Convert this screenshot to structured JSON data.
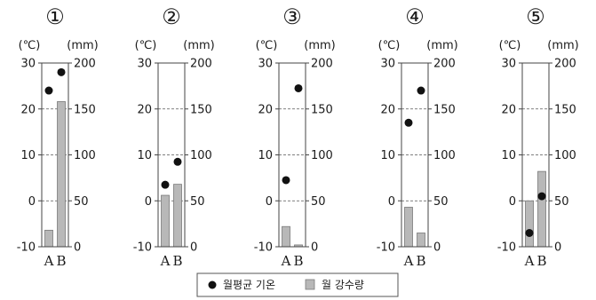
{
  "chart_data": [
    {
      "type": "bar",
      "title": "①",
      "temp_unit": "(℃)",
      "precip_unit": "(mm)",
      "categories": [
        "A",
        "B"
      ],
      "temperature_ylim": [
        -10,
        30
      ],
      "precipitation_ylim": [
        0,
        200
      ],
      "temp_ticks": [
        -10,
        0,
        10,
        20,
        30
      ],
      "precip_ticks": [
        0,
        50,
        100,
        150,
        200
      ],
      "series": [
        {
          "name": "월평균 기온",
          "kind": "dot",
          "values": [
            24,
            28
          ]
        },
        {
          "name": "월 강수량",
          "kind": "bar",
          "values": [
            18,
            158
          ]
        }
      ]
    },
    {
      "type": "bar",
      "title": "②",
      "temp_unit": "(℃)",
      "precip_unit": "(mm)",
      "categories": [
        "A",
        "B"
      ],
      "temperature_ylim": [
        -10,
        30
      ],
      "precipitation_ylim": [
        0,
        200
      ],
      "temp_ticks": [
        -10,
        0,
        10,
        20,
        30
      ],
      "precip_ticks": [
        0,
        50,
        100,
        150,
        200
      ],
      "series": [
        {
          "name": "월평균 기온",
          "kind": "dot",
          "values": [
            3.5,
            8.5
          ]
        },
        {
          "name": "월 강수량",
          "kind": "bar",
          "values": [
            56,
            68
          ]
        }
      ]
    },
    {
      "type": "bar",
      "title": "③",
      "temp_unit": "(℃)",
      "precip_unit": "(mm)",
      "categories": [
        "A",
        "B"
      ],
      "temperature_ylim": [
        -10,
        30
      ],
      "precipitation_ylim": [
        0,
        200
      ],
      "temp_ticks": [
        -10,
        0,
        10,
        20,
        30
      ],
      "precip_ticks": [
        0,
        50,
        100,
        150,
        200
      ],
      "series": [
        {
          "name": "월평균 기온",
          "kind": "dot",
          "values": [
            4.5,
            24.5
          ]
        },
        {
          "name": "월 강수량",
          "kind": "bar",
          "values": [
            22,
            2
          ]
        }
      ]
    },
    {
      "type": "bar",
      "title": "④",
      "temp_unit": "(℃)",
      "precip_unit": "(mm)",
      "categories": [
        "A",
        "B"
      ],
      "temperature_ylim": [
        -10,
        30
      ],
      "precipitation_ylim": [
        0,
        200
      ],
      "temp_ticks": [
        -10,
        0,
        10,
        20,
        30
      ],
      "precip_ticks": [
        0,
        50,
        100,
        150,
        200
      ],
      "series": [
        {
          "name": "월평균 기온",
          "kind": "dot",
          "values": [
            17,
            24
          ]
        },
        {
          "name": "월 강수량",
          "kind": "bar",
          "values": [
            43,
            15
          ]
        }
      ]
    },
    {
      "type": "bar",
      "title": "⑤",
      "temp_unit": "(℃)",
      "precip_unit": "(mm)",
      "categories": [
        "A",
        "B"
      ],
      "temperature_ylim": [
        -10,
        30
      ],
      "precipitation_ylim": [
        0,
        200
      ],
      "temp_ticks": [
        -10,
        0,
        10,
        20,
        30
      ],
      "precip_ticks": [
        0,
        50,
        100,
        150,
        200
      ],
      "series": [
        {
          "name": "월평균 기온",
          "kind": "dot",
          "values": [
            -7,
            1
          ]
        },
        {
          "name": "월 강수량",
          "kind": "bar",
          "values": [
            50,
            82
          ]
        }
      ]
    }
  ],
  "legend": {
    "temp_label": "월평균 기온",
    "precip_label": "월 강수량"
  },
  "colors": {
    "bar_fill": "#b8b8b8",
    "bar_stroke": "#7a7a7a",
    "dot": "#111111",
    "axis": "#444444",
    "grid": "#555555"
  }
}
